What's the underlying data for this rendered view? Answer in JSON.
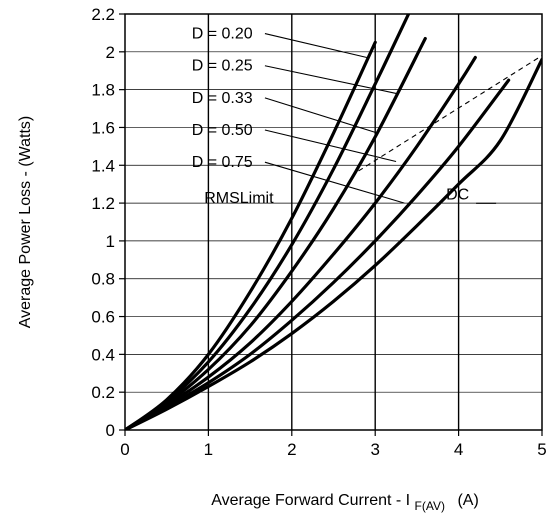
{
  "chart_data": {
    "type": "line",
    "xlabel": "Average Forward Current - I",
    "xlabel_sub": "F(AV)",
    "xlabel_unit": "(A)",
    "ylabel": "Average Power Loss - (Watts)",
    "xlim": [
      0,
      5
    ],
    "ylim": [
      0,
      2.2
    ],
    "x_ticks": [
      "0",
      "1",
      "2",
      "3",
      "4",
      "5"
    ],
    "y_ticks": [
      "0",
      "0.2",
      "0.4",
      "0.6",
      "0.8",
      "1",
      "1.2",
      "1.4",
      "1.6",
      "1.8",
      "2",
      "2.2"
    ],
    "grid": true,
    "series": [
      {
        "name": "D = 0.20",
        "x": [
          0,
          0.5,
          1,
          1.5,
          2,
          2.5,
          3
        ],
        "y": [
          0,
          0.16,
          0.4,
          0.73,
          1.12,
          1.57,
          2.05
        ]
      },
      {
        "name": "D = 0.25",
        "x": [
          0,
          0.5,
          1,
          1.5,
          2,
          2.5,
          3,
          3.4
        ],
        "y": [
          0,
          0.15,
          0.36,
          0.64,
          0.98,
          1.38,
          1.83,
          2.2
        ]
      },
      {
        "name": "D = 0.33",
        "x": [
          0,
          0.5,
          1,
          1.5,
          2,
          2.5,
          3,
          3.6
        ],
        "y": [
          0,
          0.14,
          0.32,
          0.55,
          0.84,
          1.17,
          1.55,
          2.07
        ]
      },
      {
        "name": "D = 0.50",
        "x": [
          0,
          0.5,
          1,
          1.5,
          2,
          2.5,
          3,
          3.5,
          4,
          4.2
        ],
        "y": [
          0,
          0.13,
          0.28,
          0.46,
          0.68,
          0.93,
          1.2,
          1.5,
          1.83,
          1.97
        ]
      },
      {
        "name": "D = 0.75",
        "x": [
          0,
          0.5,
          1,
          1.5,
          2,
          2.5,
          3,
          3.5,
          4,
          4.6
        ],
        "y": [
          0,
          0.12,
          0.25,
          0.4,
          0.58,
          0.78,
          1.0,
          1.24,
          1.5,
          1.85
        ]
      },
      {
        "name": "DC",
        "x": [
          0,
          0.5,
          1,
          1.5,
          2,
          2.5,
          3,
          3.5,
          4,
          4.5,
          5
        ],
        "y": [
          0,
          0.11,
          0.23,
          0.36,
          0.51,
          0.68,
          0.87,
          1.08,
          1.3,
          1.53,
          1.96
        ]
      }
    ],
    "rms_limit": {
      "name": "RMSLimit",
      "x": [
        2.8,
        5
      ],
      "y": [
        1.37,
        1.98
      ]
    },
    "annotations": [
      {
        "text": "D = 0.20",
        "series": "D = 0.20",
        "label_at": [
          0.8,
          2.07
        ],
        "point_to": [
          2.9,
          1.97
        ]
      },
      {
        "text": "D = 0.25",
        "series": "D = 0.25",
        "label_at": [
          0.8,
          1.9
        ],
        "point_to": [
          3.25,
          1.78
        ]
      },
      {
        "text": "D = 0.33",
        "series": "D = 0.33",
        "label_at": [
          0.8,
          1.73
        ],
        "point_to": [
          3.03,
          1.57
        ]
      },
      {
        "text": "D = 0.50",
        "series": "D = 0.50",
        "label_at": [
          0.8,
          1.56
        ],
        "point_to": [
          3.25,
          1.42
        ]
      },
      {
        "text": "D = 0.75",
        "series": "D = 0.75",
        "label_at": [
          0.8,
          1.39
        ],
        "point_to": [
          3.35,
          1.2
        ]
      },
      {
        "text": "RMSLimit",
        "label_at": [
          0.95,
          1.2
        ]
      },
      {
        "text": "DC",
        "label_at": [
          3.85,
          1.22
        ]
      }
    ]
  }
}
